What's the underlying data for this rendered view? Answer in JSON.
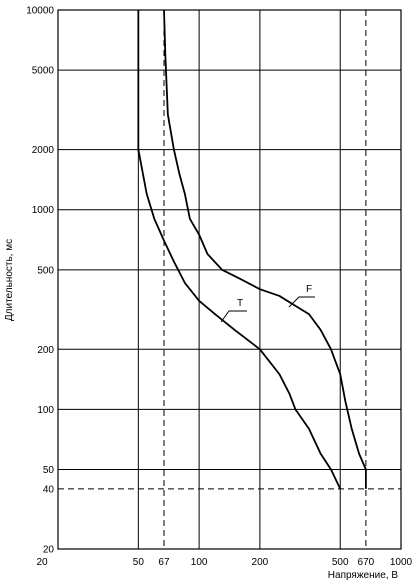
{
  "chart_data": {
    "type": "line",
    "title": "",
    "xlabel": "Напряжение, В",
    "ylabel": "Длительность, мс",
    "x_scale": "log",
    "y_scale": "log",
    "xlim": [
      20,
      1000
    ],
    "ylim": [
      20,
      10000
    ],
    "grid": true,
    "x_ticks": [
      20,
      50,
      67,
      100,
      200,
      500,
      670,
      1000
    ],
    "x_tick_labels": [
      "20",
      "50",
      "67",
      "100",
      "200",
      "500",
      "670",
      "1000"
    ],
    "y_ticks": [
      20,
      40,
      50,
      100,
      200,
      500,
      1000,
      2000,
      5000,
      10000
    ],
    "y_tick_labels": [
      "20",
      "40",
      "50",
      "100",
      "200",
      "500",
      "1000",
      "2000",
      "5000",
      "10000"
    ],
    "reference_lines": {
      "vertical_dashed": [
        67,
        670
      ],
      "horizontal_dashed": [
        40
      ]
    },
    "series": [
      {
        "name": "T",
        "x": [
          50,
          50,
          55,
          60,
          67,
          75,
          85,
          100,
          120,
          150,
          200,
          250,
          280,
          300,
          350,
          400,
          450,
          500
        ],
        "y": [
          10000,
          2000,
          1200,
          900,
          700,
          550,
          430,
          350,
          300,
          250,
          200,
          150,
          120,
          100,
          80,
          60,
          50,
          40
        ]
      },
      {
        "name": "F",
        "x": [
          67,
          68,
          70,
          75,
          80,
          85,
          90,
          100,
          110,
          130,
          160,
          200,
          250,
          300,
          350,
          400,
          450,
          500,
          530,
          570,
          620,
          670,
          670
        ],
        "y": [
          10000,
          6000,
          3000,
          2000,
          1500,
          1200,
          900,
          750,
          600,
          500,
          450,
          400,
          370,
          330,
          300,
          250,
          200,
          150,
          110,
          80,
          60,
          50,
          40
        ]
      }
    ],
    "annotations": [
      {
        "text": "T",
        "series": "T"
      },
      {
        "text": "F",
        "series": "F"
      }
    ]
  }
}
